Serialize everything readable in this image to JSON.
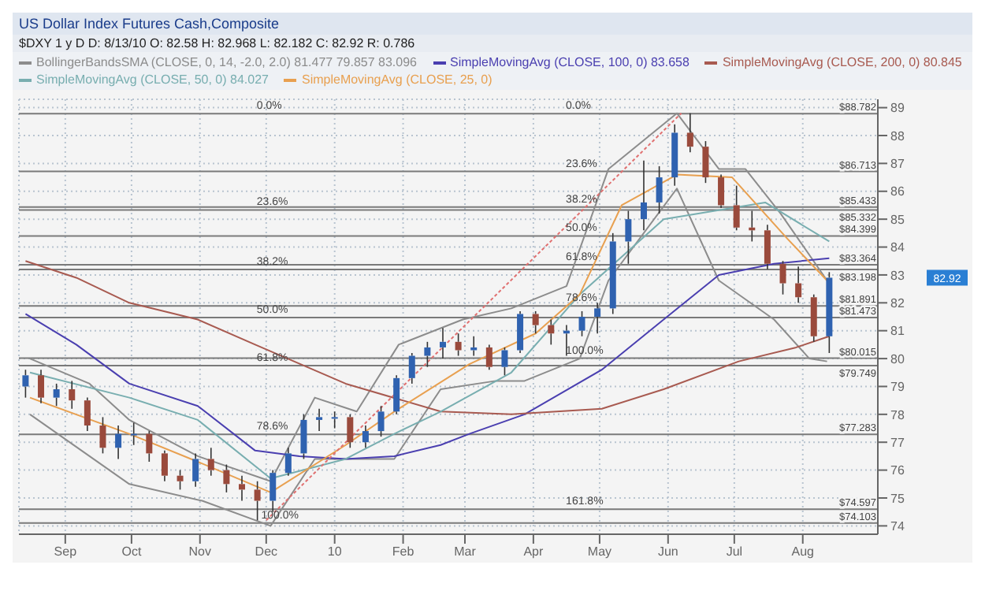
{
  "chart_data": {
    "type": "candlestick",
    "title": "US Dollar Index Futures Cash,Composite",
    "subtitle": "$DXY 1 y D   D: 8/13/10  O: 82.58  H: 82.968  L: 82.182  C: 82.92  R: 0.786",
    "x": [
      "2009-08-14",
      "2009-08-21",
      "2009-08-28",
      "2009-09-04",
      "2009-09-11",
      "2009-09-18",
      "2009-09-25",
      "2009-10-02",
      "2009-10-09",
      "2009-10-16",
      "2009-10-23",
      "2009-10-30",
      "2009-11-06",
      "2009-11-13",
      "2009-11-20",
      "2009-11-27",
      "2009-12-04",
      "2009-12-11",
      "2009-12-18",
      "2009-12-25",
      "2010-01-01",
      "2010-01-08",
      "2010-01-15",
      "2010-01-22",
      "2010-01-29",
      "2010-02-05",
      "2010-02-12",
      "2010-02-19",
      "2010-02-26",
      "2010-03-05",
      "2010-03-12",
      "2010-03-19",
      "2010-03-26",
      "2010-04-02",
      "2010-04-09",
      "2010-04-16",
      "2010-04-23",
      "2010-04-30",
      "2010-05-07",
      "2010-05-14",
      "2010-05-21",
      "2010-05-28",
      "2010-06-04",
      "2010-06-11",
      "2010-06-18",
      "2010-06-25",
      "2010-07-02",
      "2010-07-09",
      "2010-07-16",
      "2010-07-23",
      "2010-07-30",
      "2010-08-06",
      "2010-08-13"
    ],
    "ohlc": [
      [
        79.0,
        79.6,
        78.6,
        79.4
      ],
      [
        79.4,
        79.6,
        78.4,
        78.6
      ],
      [
        78.6,
        79.1,
        78.3,
        78.9
      ],
      [
        78.9,
        79.2,
        78.2,
        78.5
      ],
      [
        78.5,
        78.6,
        77.4,
        77.6
      ],
      [
        77.6,
        77.9,
        76.6,
        76.8
      ],
      [
        76.8,
        77.6,
        76.4,
        77.3
      ],
      [
        77.3,
        77.7,
        76.9,
        77.3
      ],
      [
        77.3,
        77.4,
        76.3,
        76.6
      ],
      [
        76.6,
        76.7,
        75.6,
        75.8
      ],
      [
        75.8,
        76.0,
        75.3,
        75.6
      ],
      [
        75.6,
        76.6,
        75.4,
        76.4
      ],
      [
        76.4,
        76.8,
        75.8,
        76.0
      ],
      [
        76.0,
        76.2,
        75.2,
        75.5
      ],
      [
        75.5,
        75.8,
        74.9,
        75.3
      ],
      [
        75.3,
        75.6,
        74.2,
        74.9
      ],
      [
        74.9,
        76.0,
        74.5,
        75.9
      ],
      [
        75.9,
        76.8,
        75.8,
        76.6
      ],
      [
        76.6,
        78.0,
        76.4,
        77.8
      ],
      [
        77.8,
        78.2,
        77.4,
        77.9
      ],
      [
        77.9,
        78.1,
        77.5,
        77.9
      ],
      [
        77.9,
        78.0,
        76.8,
        77.0
      ],
      [
        77.0,
        77.6,
        76.8,
        77.4
      ],
      [
        77.4,
        78.3,
        77.2,
        78.1
      ],
      [
        78.1,
        79.4,
        78.0,
        79.3
      ],
      [
        79.3,
        80.2,
        79.1,
        80.1
      ],
      [
        80.1,
        80.6,
        79.7,
        80.4
      ],
      [
        80.4,
        81.1,
        80.0,
        80.6
      ],
      [
        80.6,
        80.9,
        80.1,
        80.3
      ],
      [
        80.3,
        80.8,
        80.1,
        80.4
      ],
      [
        80.4,
        80.5,
        79.6,
        79.7
      ],
      [
        79.7,
        80.4,
        79.4,
        80.3
      ],
      [
        80.3,
        81.7,
        80.2,
        81.6
      ],
      [
        81.6,
        81.7,
        80.9,
        81.2
      ],
      [
        81.2,
        81.4,
        80.5,
        80.9
      ],
      [
        80.9,
        81.2,
        80.1,
        81.0
      ],
      [
        81.0,
        81.7,
        80.8,
        81.5
      ],
      [
        81.5,
        82.0,
        80.9,
        81.8
      ],
      [
        81.8,
        84.5,
        81.6,
        84.2
      ],
      [
        84.2,
        85.3,
        83.4,
        85.0
      ],
      [
        85.0,
        87.1,
        84.6,
        85.6
      ],
      [
        85.6,
        86.9,
        85.2,
        86.5
      ],
      [
        86.5,
        88.4,
        86.2,
        88.1
      ],
      [
        88.1,
        88.8,
        87.4,
        87.6
      ],
      [
        87.6,
        87.8,
        86.3,
        86.5
      ],
      [
        86.5,
        86.6,
        85.4,
        85.5
      ],
      [
        85.5,
        86.2,
        84.6,
        84.7
      ],
      [
        84.7,
        85.3,
        84.2,
        84.6
      ],
      [
        84.6,
        84.8,
        83.2,
        83.4
      ],
      [
        83.4,
        83.5,
        82.3,
        82.7
      ],
      [
        82.7,
        83.3,
        82.0,
        82.2
      ],
      [
        82.2,
        82.3,
        80.6,
        80.8
      ],
      [
        80.8,
        83.1,
        80.2,
        82.9
      ]
    ],
    "series": [
      {
        "type": "line",
        "name": "BollingerBandsSMA (CLOSE, 0, 14, -2.0, 2.0)  81.477  79.857  83.096",
        "color": "#8c8c8c",
        "x": [
          "2009-08-16",
          "2009-09-12",
          "2009-09-30",
          "2009-10-31",
          "2009-12-03",
          "2009-12-23",
          "2010-01-11",
          "2010-01-30",
          "2010-02-28",
          "2010-03-22",
          "2010-04-16",
          "2010-05-05",
          "2010-06-05",
          "2010-06-24",
          "2010-07-06",
          "2010-07-22",
          "2010-08-12"
        ],
        "values": [
          80.0,
          79.1,
          77.8,
          76.5,
          75.6,
          78.6,
          78.1,
          80.5,
          81.4,
          81.8,
          82.6,
          86.8,
          88.8,
          86.8,
          86.8,
          85.2,
          82.8
        ]
      },
      {
        "type": "line",
        "color": "#8c8c8c",
        "x": [
          "2009-08-16",
          "2009-09-30",
          "2009-11-02",
          "2009-12-03",
          "2009-12-23",
          "2010-01-11",
          "2010-01-28",
          "2010-02-18",
          "2010-03-15",
          "2010-03-28",
          "2010-04-22",
          "2010-05-05",
          "2010-06-05",
          "2010-06-24",
          "2010-07-19",
          "2010-08-04",
          "2010-08-12"
        ],
        "values": [
          78.0,
          75.5,
          74.9,
          74.0,
          76.4,
          76.4,
          76.4,
          78.9,
          79.2,
          79.2,
          80.0,
          82.8,
          86.1,
          82.8,
          81.4,
          80.0,
          79.9
        ]
      },
      {
        "type": "line",
        "name": "SimpleMovingAvg (CLOSE, 100, 0)  83.658",
        "color": "#4a3fb0",
        "x": [
          "2009-08-14",
          "2009-09-06",
          "2009-09-30",
          "2009-10-31",
          "2009-11-26",
          "2009-12-16",
          "2010-01-06",
          "2010-01-28",
          "2010-02-18",
          "2010-03-03",
          "2010-03-28",
          "2010-05-02",
          "2010-05-30",
          "2010-06-24",
          "2010-07-19",
          "2010-08-13"
        ],
        "values": [
          81.6,
          80.5,
          79.1,
          78.3,
          76.7,
          76.5,
          76.4,
          76.5,
          76.9,
          77.3,
          78.0,
          79.6,
          81.4,
          83.0,
          83.4,
          83.6
        ]
      },
      {
        "type": "line",
        "name": "SimpleMovingAvg (CLOSE, 200, 0)  80.845",
        "color": "#a85a50",
        "x": [
          "2009-08-14",
          "2009-09-06",
          "2009-09-30",
          "2009-10-31",
          "2009-11-26",
          "2010-01-06",
          "2010-02-18",
          "2010-03-22",
          "2010-05-02",
          "2010-05-30",
          "2010-07-03",
          "2010-07-29",
          "2010-08-13"
        ],
        "values": [
          83.5,
          82.9,
          82.0,
          81.4,
          80.5,
          79.1,
          78.1,
          78.0,
          78.2,
          78.9,
          79.9,
          80.4,
          80.8
        ]
      },
      {
        "type": "line",
        "name": "SimpleMovingAvg (CLOSE, 50, 0)  84.027",
        "color": "#78aeb0",
        "x": [
          "2009-08-16",
          "2009-09-30",
          "2009-10-31",
          "2009-12-03",
          "2010-01-06",
          "2010-01-28",
          "2010-02-18",
          "2010-03-22",
          "2010-04-22",
          "2010-05-30",
          "2010-07-15",
          "2010-08-13"
        ],
        "values": [
          79.5,
          78.6,
          77.8,
          75.7,
          76.4,
          77.3,
          78.1,
          79.5,
          82.3,
          85.0,
          85.6,
          84.2
        ]
      },
      {
        "type": "line",
        "name": "SimpleMovingAvg (CLOSE, 25, 0)",
        "color": "#e8a050",
        "x": [
          "2009-08-16",
          "2009-09-30",
          "2009-10-31",
          "2009-12-03",
          "2010-01-06",
          "2010-01-28",
          "2010-03-03",
          "2010-04-02",
          "2010-04-22",
          "2010-05-11",
          "2010-06-05",
          "2010-06-30",
          "2010-07-25",
          "2010-08-12"
        ],
        "values": [
          78.6,
          77.3,
          76.3,
          75.2,
          76.9,
          78.1,
          79.8,
          80.9,
          82.3,
          85.5,
          86.6,
          86.5,
          84.3,
          82.8
        ]
      },
      {
        "type": "line",
        "color": "#e07070",
        "line_style": "dotted",
        "x": [
          "2009-12-01",
          "2010-06-07"
        ],
        "values": [
          74.2,
          88.8
        ]
      }
    ],
    "xlim": [
      "2009-08-11",
      "2010-09-04"
    ],
    "ylim": [
      73.7,
      89.3
    ],
    "xticks": [
      {
        "value": "2009-09-01",
        "label": "Sep"
      },
      {
        "value": "2009-10-01",
        "label": "Oct"
      },
      {
        "value": "2009-11-01",
        "label": "Nov"
      },
      {
        "value": "2009-12-01",
        "label": "Dec"
      },
      {
        "value": "2010-01-01",
        "label": "10"
      },
      {
        "value": "2010-02-01",
        "label": "Feb"
      },
      {
        "value": "2010-03-01",
        "label": "Mar"
      },
      {
        "value": "2010-04-01",
        "label": "Apr"
      },
      {
        "value": "2010-05-01",
        "label": "May"
      },
      {
        "value": "2010-06-01",
        "label": "Jun"
      },
      {
        "value": "2010-07-01",
        "label": "Jul"
      },
      {
        "value": "2010-08-01",
        "label": "Aug"
      }
    ],
    "yticks": [
      74,
      75,
      76,
      77,
      78,
      79,
      80,
      81,
      82,
      83,
      84,
      85,
      86,
      87,
      88,
      89
    ],
    "grid": true,
    "legend": "top",
    "ref_lines": [
      {
        "axis": "y",
        "value": 88.782,
        "label": "$88.782",
        "color": "#7a7a7a"
      },
      {
        "axis": "y",
        "value": 86.713,
        "label": "$86.713",
        "color": "#7a7a7a"
      },
      {
        "axis": "y",
        "value": 85.433,
        "label": "$85.433",
        "color": "#7a7a7a"
      },
      {
        "axis": "y",
        "value": 85.332,
        "label": "$85.332",
        "color": "#7a7a7a"
      },
      {
        "axis": "y",
        "value": 84.399,
        "label": "$84.399",
        "color": "#7a7a7a"
      },
      {
        "axis": "y",
        "value": 83.364,
        "label": "$83.364",
        "color": "#7a7a7a"
      },
      {
        "axis": "y",
        "value": 83.198,
        "label": "$83.198",
        "color": "#7a7a7a"
      },
      {
        "axis": "y",
        "value": 81.891,
        "label": "$81.891",
        "color": "#7a7a7a"
      },
      {
        "axis": "y",
        "value": 81.473,
        "label": "$81.473",
        "color": "#7a7a7a"
      },
      {
        "axis": "y",
        "value": 80.015,
        "label": "$80.015",
        "color": "#7a7a7a"
      },
      {
        "axis": "y",
        "value": 79.749,
        "label": "$79.749",
        "color": "#7a7a7a"
      },
      {
        "axis": "y",
        "value": 77.283,
        "label": "$77.283",
        "color": "#7a7a7a"
      },
      {
        "axis": "y",
        "value": 74.597,
        "label": "$74.597",
        "color": "#7a7a7a"
      },
      {
        "axis": "y",
        "value": 74.103,
        "label": "$74.103",
        "color": "#7a7a7a"
      }
    ],
    "annotations": [
      {
        "text": "0.0%",
        "x": "2009-11-26",
        "y": 88.782
      },
      {
        "text": "23.6%",
        "x": "2009-11-26",
        "y": 85.332
      },
      {
        "text": "38.2%",
        "x": "2009-11-26",
        "y": 83.198
      },
      {
        "text": "50.0%",
        "x": "2009-11-26",
        "y": 81.473
      },
      {
        "text": "61.8%",
        "x": "2009-11-26",
        "y": 79.749
      },
      {
        "text": "78.6%",
        "x": "2009-11-26",
        "y": 77.283
      },
      {
        "text": "100.0%",
        "x": "2009-11-28",
        "y": 74.103
      },
      {
        "text": "0.0%",
        "x": "2010-04-15",
        "y": 88.782
      },
      {
        "text": "23.6%",
        "x": "2010-04-15",
        "y": 86.713
      },
      {
        "text": "38.2%",
        "x": "2010-04-15",
        "y": 85.433
      },
      {
        "text": "50.0%",
        "x": "2010-04-15",
        "y": 84.399
      },
      {
        "text": "61.8%",
        "x": "2010-04-15",
        "y": 83.364
      },
      {
        "text": "78.6%",
        "x": "2010-04-15",
        "y": 81.891
      },
      {
        "text": "100.0%",
        "x": "2010-04-15",
        "y": 80.015
      },
      {
        "text": "161.8%",
        "x": "2010-04-15",
        "y": 74.597
      },
      "82.92"
    ]
  }
}
